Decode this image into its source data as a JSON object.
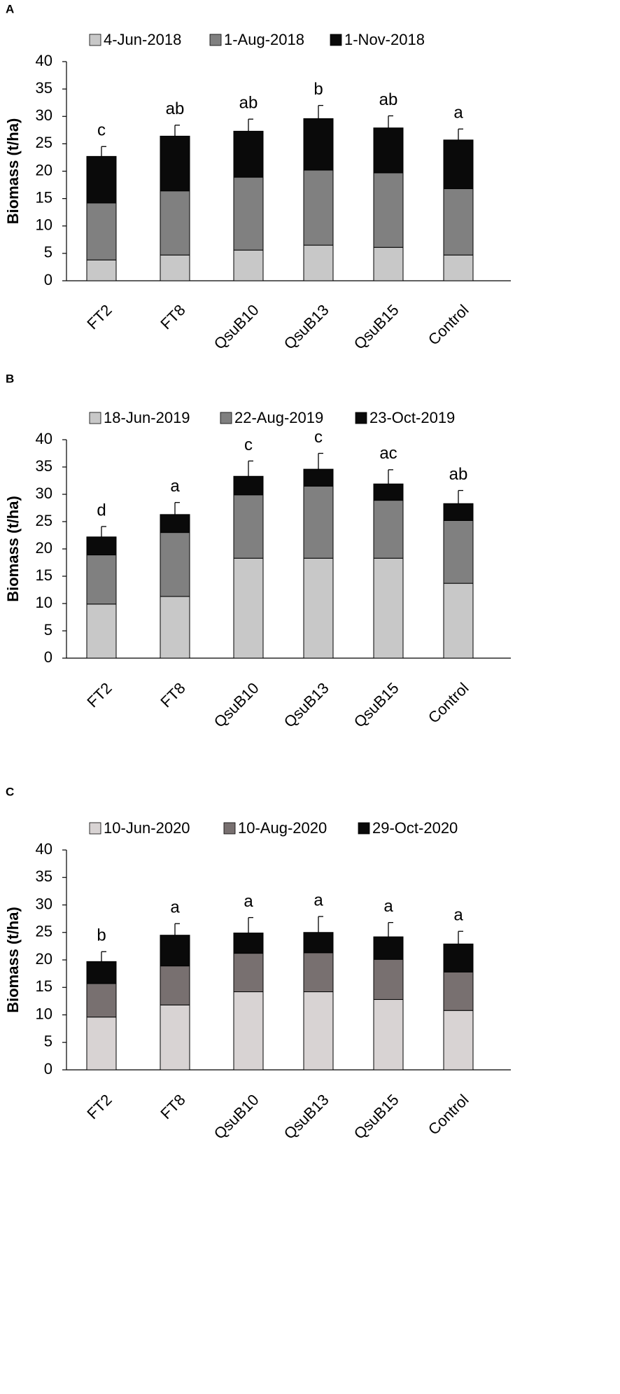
{
  "figure": {
    "colors": {
      "series_a": [
        "#c8c8c8",
        "#808080",
        "#0a0a0a"
      ],
      "series_b": [
        "#c8c8c8",
        "#808080",
        "#0a0a0a"
      ],
      "series_c": [
        "#d8d3d3",
        "#787070",
        "#0a0a0a"
      ]
    }
  },
  "chart_data": [
    {
      "panel_label": "A",
      "type": "bar",
      "stacked": true,
      "ylabel": "Biomass (t/ha)",
      "ylim": [
        0,
        40
      ],
      "yticks": [
        "0",
        "5",
        "10",
        "15",
        "20",
        "25",
        "30",
        "35",
        "40"
      ],
      "categories": [
        "FT2",
        "FT8",
        "QsuB10",
        "QsuB13",
        "QsuB15",
        "Control"
      ],
      "series": [
        {
          "name": "4-Jun-2018",
          "values": [
            3.8,
            4.7,
            5.6,
            6.5,
            6.1,
            4.7
          ]
        },
        {
          "name": "1-Aug-2018",
          "values": [
            10.4,
            11.7,
            13.3,
            13.7,
            13.6,
            12.1
          ]
        },
        {
          "name": "1-Nov-2018",
          "values": [
            8.5,
            10.0,
            8.4,
            9.4,
            8.2,
            8.9
          ]
        }
      ],
      "totals": [
        22.7,
        26.4,
        27.3,
        29.6,
        27.9,
        25.7
      ],
      "error_bars": [
        1.8,
        2.0,
        2.2,
        2.4,
        2.2,
        2.0
      ],
      "significance": [
        "c",
        "ab",
        "ab",
        "b",
        "ab",
        "a"
      ],
      "legend_position": "top"
    },
    {
      "panel_label": "B",
      "type": "bar",
      "stacked": true,
      "ylabel": "Biomass (t/ha)",
      "ylim": [
        0,
        40
      ],
      "yticks": [
        "0",
        "5",
        "10",
        "15",
        "20",
        "25",
        "30",
        "35",
        "40"
      ],
      "categories": [
        "FT2",
        "FT8",
        "QsuB10",
        "QsuB13",
        "QsuB15",
        "Control"
      ],
      "series": [
        {
          "name": "18-Jun-2019",
          "values": [
            9.9,
            11.3,
            18.3,
            18.3,
            18.3,
            13.7
          ]
        },
        {
          "name": "22-Aug-2019",
          "values": [
            9.0,
            11.7,
            11.6,
            13.2,
            10.6,
            11.5
          ]
        },
        {
          "name": "23-Oct-2019",
          "values": [
            3.3,
            3.3,
            3.4,
            3.1,
            3.0,
            3.1
          ]
        }
      ],
      "totals": [
        22.2,
        26.3,
        33.3,
        34.6,
        31.9,
        28.3
      ],
      "error_bars": [
        1.9,
        2.2,
        2.8,
        2.9,
        2.6,
        2.4
      ],
      "significance": [
        "d",
        "a",
        "c",
        "c",
        "ac",
        "ab"
      ],
      "legend_position": "top"
    },
    {
      "panel_label": "C",
      "type": "bar",
      "stacked": true,
      "ylabel": "Biomass (t/ha)",
      "ylim": [
        0,
        40
      ],
      "yticks": [
        "0",
        "5",
        "10",
        "15",
        "20",
        "25",
        "30",
        "35",
        "40"
      ],
      "categories": [
        "FT2",
        "FT8",
        "QsuB10",
        "QsuB13",
        "QsuB15",
        "Control"
      ],
      "series": [
        {
          "name": "10-Jun-2020",
          "values": [
            9.6,
            11.8,
            14.2,
            14.2,
            12.8,
            10.8
          ]
        },
        {
          "name": "10-Aug-2020",
          "values": [
            6.1,
            7.1,
            7.0,
            7.1,
            7.3,
            7.0
          ]
        },
        {
          "name": "29-Oct-2020",
          "values": [
            4.0,
            5.6,
            3.7,
            3.7,
            4.1,
            5.1
          ]
        }
      ],
      "totals": [
        19.7,
        24.5,
        24.9,
        25.0,
        24.2,
        22.9
      ],
      "error_bars": [
        1.8,
        2.1,
        2.8,
        2.9,
        2.6,
        2.3
      ],
      "significance": [
        "b",
        "a",
        "a",
        "a",
        "a",
        "a"
      ],
      "legend_position": "top"
    }
  ]
}
